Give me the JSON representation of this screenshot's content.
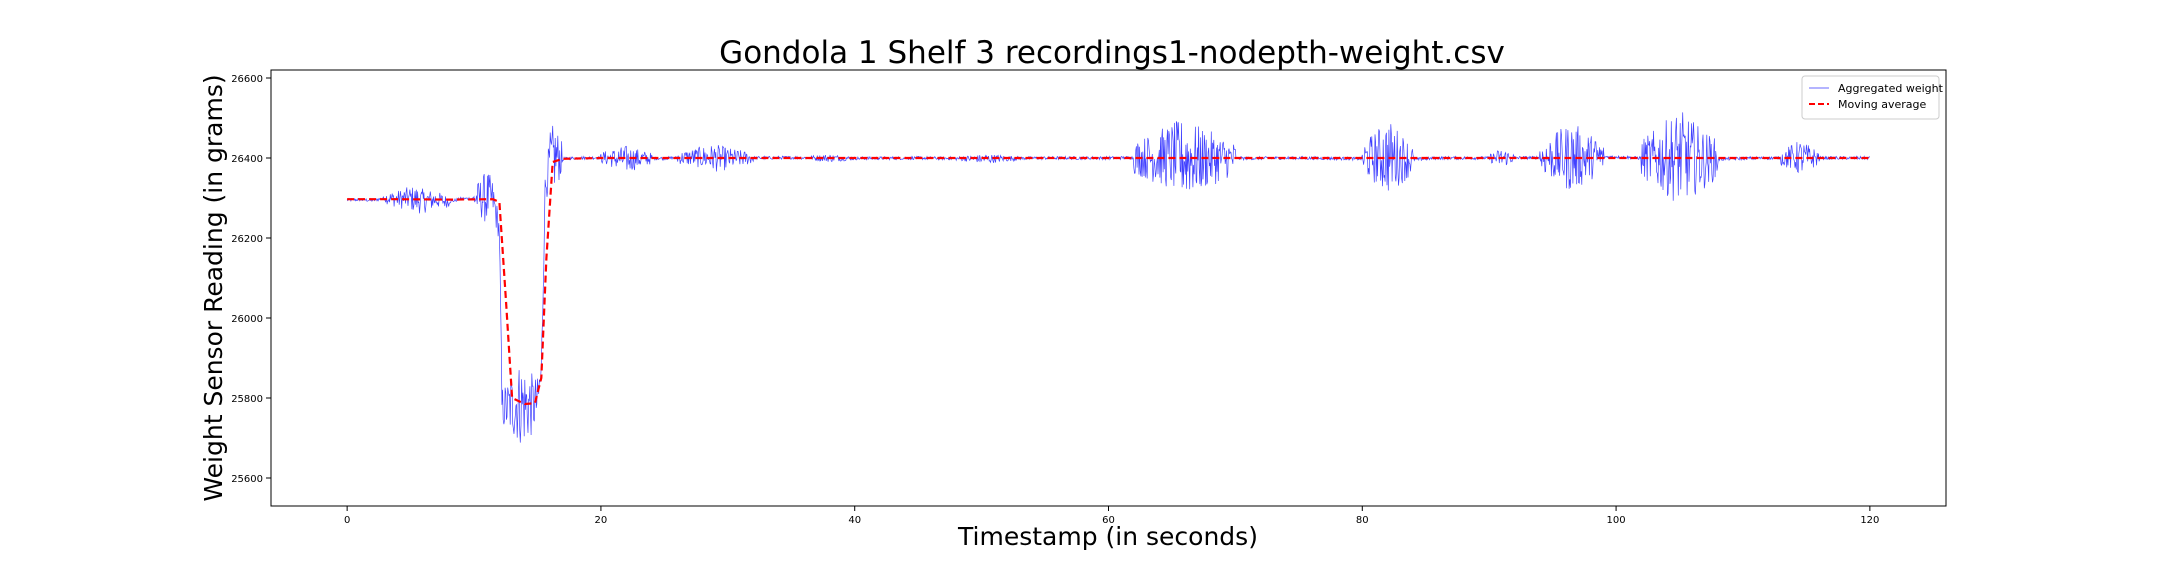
{
  "chart_data": {
    "type": "line",
    "title": "Gondola 1 Shelf 3 recordings1-nodepth-weight.csv",
    "xlabel": "Timestamp (in seconds)",
    "ylabel": "Weight Sensor Reading (in grams)",
    "xlim": [
      -6,
      126
    ],
    "ylim": [
      25530,
      26620
    ],
    "xticks": [
      0,
      20,
      40,
      60,
      80,
      100,
      120
    ],
    "yticks": [
      25600,
      25800,
      26000,
      26200,
      26400,
      26600
    ],
    "legend_position": "top-right",
    "grid": false,
    "series": [
      {
        "name": "Aggregated weight",
        "style": "thin-solid",
        "color": "#0000ff",
        "x": [
          0,
          1,
          2,
          3,
          4,
          5,
          6,
          7,
          8,
          9,
          10,
          10.5,
          11,
          11.5,
          12,
          12.2,
          12.5,
          13,
          13.5,
          14,
          14.5,
          15,
          15.3,
          15.6,
          16,
          16.5,
          17,
          18,
          20,
          22,
          24,
          26,
          28,
          30,
          32,
          35,
          40,
          45,
          50,
          55,
          60,
          63,
          65,
          67,
          70,
          75,
          80,
          82,
          84,
          86,
          90,
          95,
          100,
          103,
          105,
          107,
          110,
          114,
          116,
          120
        ],
        "y": [
          26295,
          26296,
          26294,
          26300,
          26297,
          26299,
          26292,
          26296,
          26290,
          26298,
          26299,
          26300,
          26302,
          26296,
          26220,
          25780,
          25775,
          25781,
          25787,
          25783,
          25782,
          25789,
          25860,
          26320,
          26400,
          26402,
          26398,
          26400,
          26401,
          26397,
          26399,
          26400,
          26402,
          26398,
          26400,
          26401,
          26399,
          26400,
          26398,
          26400,
          26400,
          26401,
          26403,
          26397,
          26399,
          26400,
          26398,
          26404,
          26396,
          26400,
          26400,
          26401,
          26403,
          26398,
          26402,
          26396,
          26399,
          26401,
          26400,
          26400
        ]
      },
      {
        "name": "Moving average",
        "style": "dashed",
        "color": "#ff0000",
        "x": [
          0,
          4,
          8,
          11.5,
          12,
          12.5,
          13,
          14,
          14.8,
          15.3,
          15.7,
          16.2,
          17,
          20,
          40,
          60,
          80,
          100,
          120
        ],
        "y": [
          26297,
          26297,
          26296,
          26297,
          26290,
          26050,
          25800,
          25785,
          25787,
          25850,
          26150,
          26390,
          26398,
          26400,
          26400,
          26400,
          26400,
          26400,
          26400
        ]
      }
    ]
  }
}
